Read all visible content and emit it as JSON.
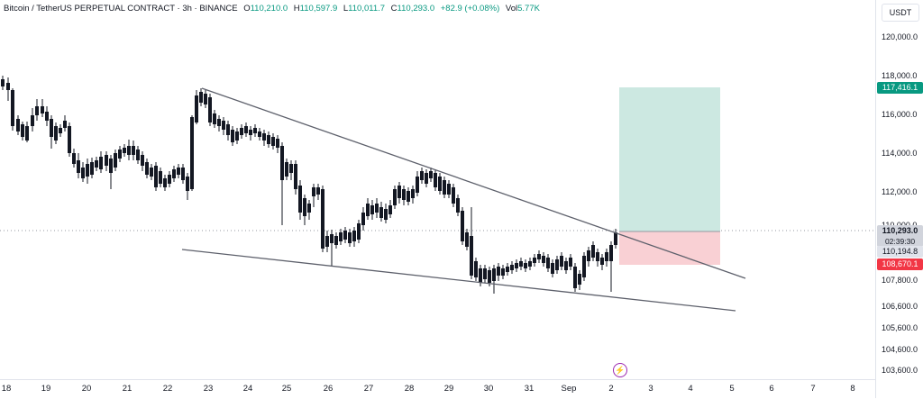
{
  "header": {
    "symbol": "Bitcoin / TetherUS PERPETUAL CONTRACT · 3h · BINANCE",
    "open_label": "O",
    "open": "110,210.0",
    "high_label": "H",
    "high": "110,597.9",
    "low_label": "L",
    "low": "110,011.7",
    "close_label": "C",
    "close": "110,293.0",
    "change": "+82.9 (+0.08%)",
    "vol_label": "Vol",
    "vol": "5.77K"
  },
  "price_axis": {
    "currency": "USDT",
    "ticks": [
      "120,000.0",
      "118,000.0",
      "116,000.0",
      "114,000.0",
      "112,000.0",
      "110,000.0",
      "107,800.0",
      "106,600.0",
      "105,600.0",
      "104,600.0",
      "103,600.0"
    ],
    "target_label": "117,416.1",
    "current_price": "110,293.0",
    "countdown": "02:39:30",
    "entry_label": "110,194.8",
    "stop_label": "108,670.1"
  },
  "time_axis": {
    "labels": [
      "18",
      "19",
      "20",
      "21",
      "22",
      "23",
      "24",
      "25",
      "26",
      "27",
      "28",
      "29",
      "30",
      "31",
      "Sep",
      "2",
      "3",
      "4",
      "5",
      "6",
      "7",
      "8"
    ]
  },
  "colors": {
    "up": "#26a69a",
    "down": "#131722",
    "target_zone": "#cce8e1",
    "stop_zone": "#f9d0d4",
    "trendline": "#5d606b"
  },
  "icons": [
    "flash-icon"
  ]
}
